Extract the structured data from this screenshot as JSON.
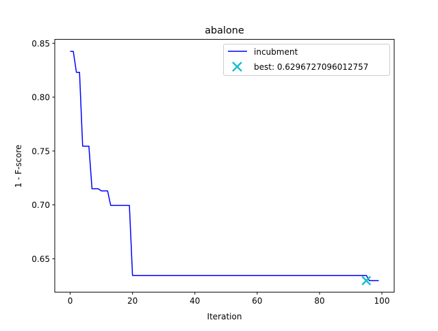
{
  "chart_data": {
    "type": "line",
    "title": "abalone",
    "xlabel": "Iteration",
    "ylabel": "1 - F-score",
    "xlim": [
      -4.95,
      103.95
    ],
    "ylim": [
      0.619,
      0.8536
    ],
    "xticks": [
      0,
      20,
      40,
      60,
      80,
      100
    ],
    "xtick_labels": [
      "0",
      "20",
      "40",
      "60",
      "80",
      "100"
    ],
    "yticks": [
      0.65,
      0.7,
      0.75,
      0.8,
      0.85
    ],
    "ytick_labels": [
      "0.65",
      "0.70",
      "0.75",
      "0.80",
      "0.85"
    ],
    "grid": false,
    "legend_position": "top-right",
    "series": [
      {
        "name": "incubment",
        "kind": "step-line",
        "color": "#0000ff",
        "x": [
          0,
          1,
          2,
          3,
          4,
          5,
          6,
          7,
          8,
          9,
          10,
          11,
          12,
          13,
          14,
          15,
          16,
          17,
          18,
          19,
          20,
          21,
          95,
          96,
          97,
          98,
          99
        ],
        "y": [
          0.8425,
          0.8425,
          0.823,
          0.823,
          0.7545,
          0.7545,
          0.7545,
          0.715,
          0.715,
          0.715,
          0.713,
          0.713,
          0.713,
          0.6995,
          0.6995,
          0.6995,
          0.6995,
          0.6995,
          0.6995,
          0.6995,
          0.6345,
          0.6345,
          0.6345,
          0.6297,
          0.6297,
          0.6297,
          0.6297
        ]
      },
      {
        "name": "best: 0.6296727096012757",
        "kind": "marker",
        "marker": "x",
        "color": "#17becf",
        "x": [
          95
        ],
        "y": [
          0.6296727096012757
        ]
      }
    ]
  }
}
